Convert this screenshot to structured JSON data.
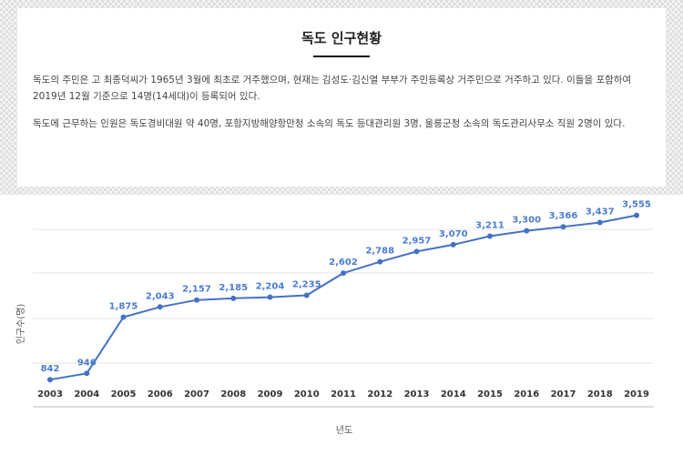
{
  "header": {
    "title": "독도 인구현황",
    "paragraphs": [
      "독도의 주민은 고 최종덕씨가 1965년 3월에 최초로 거주했으며, 현재는 김성도·김신열 부부가 주민등록상 거주민으로 거주하고 있다. 이들을 포함하여 2019년 12월 기준으로 14명(14세대)이 등록되어 있다.",
      "독도에 근무하는 인원은 독도경비대원 약 40명, 포항지방해양항만청 소속의 독도 등대관리원 3명, 울릉군청 소속의 독도관리사무소 직원 2명이 있다."
    ]
  },
  "chart_data": {
    "type": "line",
    "title": "",
    "xlabel": "년도",
    "ylabel": "인구수(명)",
    "categories": [
      "2003",
      "2004",
      "2005",
      "2006",
      "2007",
      "2008",
      "2009",
      "2010",
      "2011",
      "2012",
      "2013",
      "2014",
      "2015",
      "2016",
      "2017",
      "2018",
      "2019"
    ],
    "values": [
      842,
      946,
      1875,
      2043,
      2157,
      2185,
      2204,
      2235,
      2602,
      2788,
      2957,
      3070,
      3211,
      3300,
      3366,
      3437,
      3555
    ],
    "value_labels": [
      "842",
      "946",
      "1,875",
      "2,043",
      "2,157",
      "2,185",
      "2,204",
      "2,235",
      "2,602",
      "2,788",
      "2,957",
      "3,070",
      "3,211",
      "3,300",
      "3,366",
      "3,437",
      "3,555"
    ],
    "ylim": [
      500,
      4000
    ],
    "grid": true,
    "legend": "none",
    "line_color": "#4472c4"
  }
}
